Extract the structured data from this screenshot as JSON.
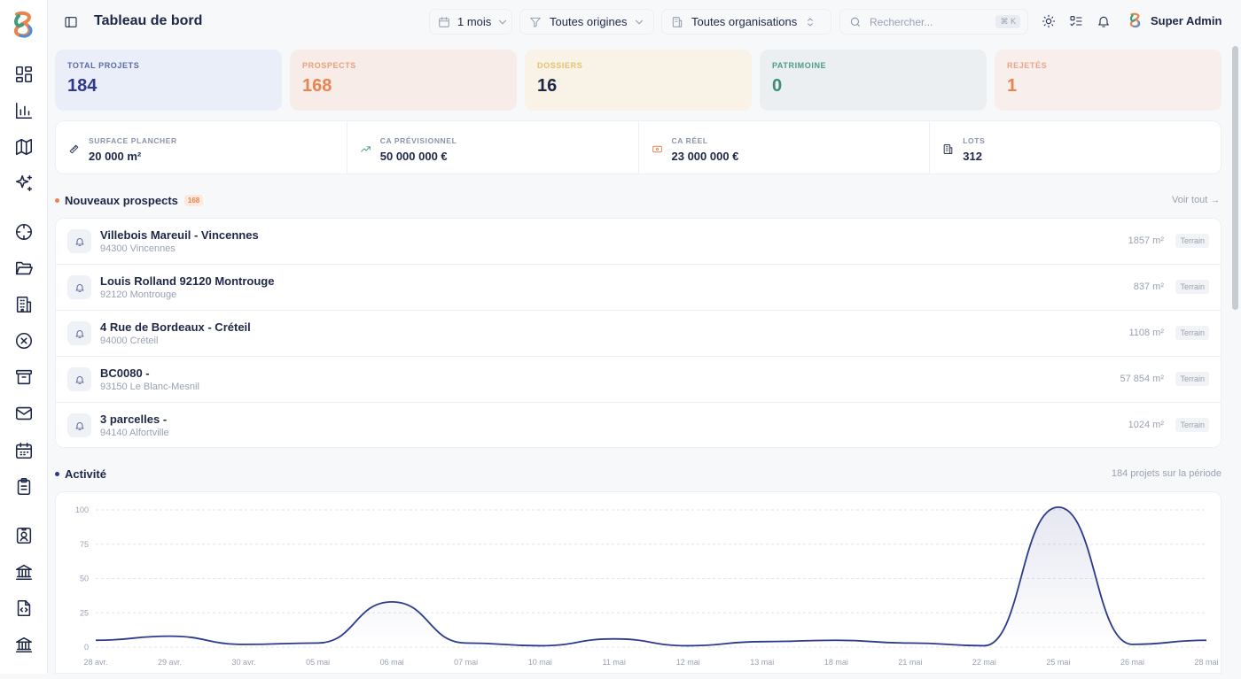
{
  "header": {
    "title": "Tableau de bord",
    "period": "1 mois",
    "origins": "Toutes origines",
    "organisations": "Toutes organisations",
    "search_placeholder": "Rechercher...",
    "search_shortcut": "⌘ K",
    "user_name": "Super Admin"
  },
  "sidebar": {
    "icons": [
      "dashboard-icon",
      "bar-chart-icon",
      "map-icon",
      "sparkles-icon",
      "crosshair-icon",
      "folder-open-icon",
      "building-icon",
      "x-circle-icon",
      "archive-icon",
      "mail-icon",
      "calendar-icon",
      "clipboard-list-icon",
      "contact-badge-icon",
      "bank-icon",
      "file-code-icon",
      "bank-icon"
    ]
  },
  "kpis": [
    {
      "label": "TOTAL PROJETS",
      "value": "184",
      "color": "#2d3a8c",
      "label_color": "#5a6aa8",
      "bg": "#eaeef8"
    },
    {
      "label": "PROSPECTS",
      "value": "168",
      "color": "#e8844f",
      "label_color": "#e8a07c",
      "bg": "#f8ece8"
    },
    {
      "label": "DOSSIERS",
      "value": "16",
      "color": "#1e2748",
      "label_color": "#e9c268",
      "bg": "#f8f3e6"
    },
    {
      "label": "PATRIMOINE",
      "value": "0",
      "color": "#3f8c74",
      "label_color": "#4e9c84",
      "bg": "#ebeff1"
    },
    {
      "label": "REJETÉS",
      "value": "1",
      "color": "#e8844f",
      "label_color": "#eba58a",
      "bg": "#f8eeec"
    }
  ],
  "metrics": [
    {
      "label": "SURFACE PLANCHER",
      "value": "20 000 m²",
      "icon": "ruler-icon",
      "icon_color": "#1e2748"
    },
    {
      "label": "CA PRÉVISIONNEL",
      "value": "50 000 000 €",
      "icon": "trending-up-icon",
      "icon_color": "#3f9c7c"
    },
    {
      "label": "CA RÉEL",
      "value": "23 000 000 €",
      "icon": "banknote-icon",
      "icon_color": "#e8844f"
    },
    {
      "label": "LOTS",
      "value": "312",
      "icon": "building-icon",
      "icon_color": "#1e2748"
    }
  ],
  "prospects_section": {
    "title": "Nouveaux prospects",
    "count": "168",
    "see_all": "Voir tout →",
    "items": [
      {
        "name": "Villebois Mareuil - Vincennes",
        "address": "94300 Vincennes",
        "area": "1857 m²",
        "tag": "Terrain"
      },
      {
        "name": "Louis Rolland 92120 Montrouge",
        "address": "92120 Montrouge",
        "area": "837 m²",
        "tag": "Terrain"
      },
      {
        "name": "4 Rue de Bordeaux - Créteil",
        "address": "94000 Créteil",
        "area": "1108 m²",
        "tag": "Terrain"
      },
      {
        "name": "BC0080 -",
        "address": "93150 Le Blanc-Mesnil",
        "area": "57 854 m²",
        "tag": "Terrain"
      },
      {
        "name": "3 parcelles -",
        "address": "94140 Alfortville",
        "area": "1024 m²",
        "tag": "Terrain"
      }
    ]
  },
  "activity_section": {
    "title": "Activité",
    "summary": "184 projets sur la période"
  },
  "chart_data": {
    "type": "area",
    "categories": [
      "28 avr.",
      "29 avr.",
      "30 avr.",
      "05 mai",
      "06 mai",
      "07 mai",
      "10 mai",
      "11 mai",
      "12 mai",
      "13 mai",
      "18 mai",
      "21 mai",
      "22 mai",
      "25 mai",
      "26 mai",
      "28 mai"
    ],
    "values": [
      5,
      8,
      2,
      3,
      33,
      3,
      1,
      6,
      1,
      4,
      5,
      3,
      1,
      102,
      2,
      5
    ],
    "yticks": [
      0,
      25,
      50,
      75,
      100
    ],
    "ylim": [
      0,
      100
    ],
    "grid": true,
    "line_color": "#2d3a8c"
  }
}
